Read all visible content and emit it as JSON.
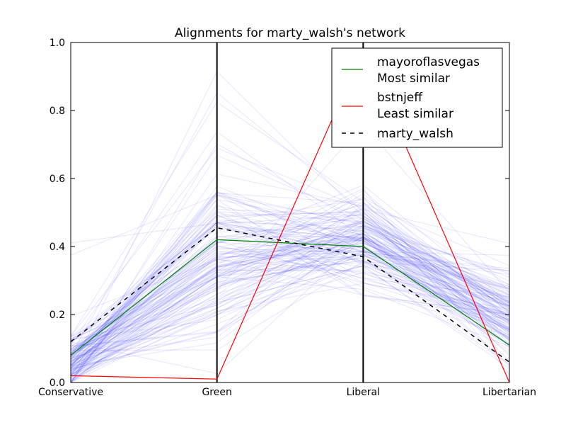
{
  "chart_data": {
    "type": "line",
    "subtype": "parallel-coordinates",
    "title": "Alignments for marty_walsh's network",
    "categories": [
      "Conservative",
      "Green",
      "Liberal",
      "Libertarian"
    ],
    "ylim": [
      0,
      1
    ],
    "yticks": [
      "0.0",
      "0.2",
      "0.4",
      "0.6",
      "0.8",
      "1.0"
    ],
    "grid": false,
    "legend_position": "top-right",
    "background_series": {
      "color": "#0000ff",
      "opacity": 0.1,
      "count": 140,
      "profile": {
        "Conservative": {
          "mean": 0.06,
          "spread": 0.06,
          "max": 0.5
        },
        "Green": {
          "mean": 0.34,
          "spread": 0.2,
          "max": 0.93
        },
        "Liberal": {
          "mean": 0.42,
          "spread": 0.12,
          "max": 0.82
        },
        "Libertarian": {
          "mean": 0.18,
          "spread": 0.1,
          "max": 0.48
        }
      }
    },
    "series": [
      {
        "name": "mayoroflasvegas",
        "label_line2": "Most similar",
        "color": "#008000",
        "style": "solid",
        "values": [
          0.08,
          0.42,
          0.4,
          0.11
        ]
      },
      {
        "name": "bstnjeff",
        "label_line2": "Least similar",
        "color": "#ff0000",
        "style": "solid",
        "values": [
          0.02,
          0.01,
          0.98,
          0.0
        ]
      },
      {
        "name": "marty_walsh",
        "label_line2": "",
        "color": "#000000",
        "style": "dashed",
        "values": [
          0.12,
          0.455,
          0.37,
          0.06
        ]
      }
    ]
  }
}
